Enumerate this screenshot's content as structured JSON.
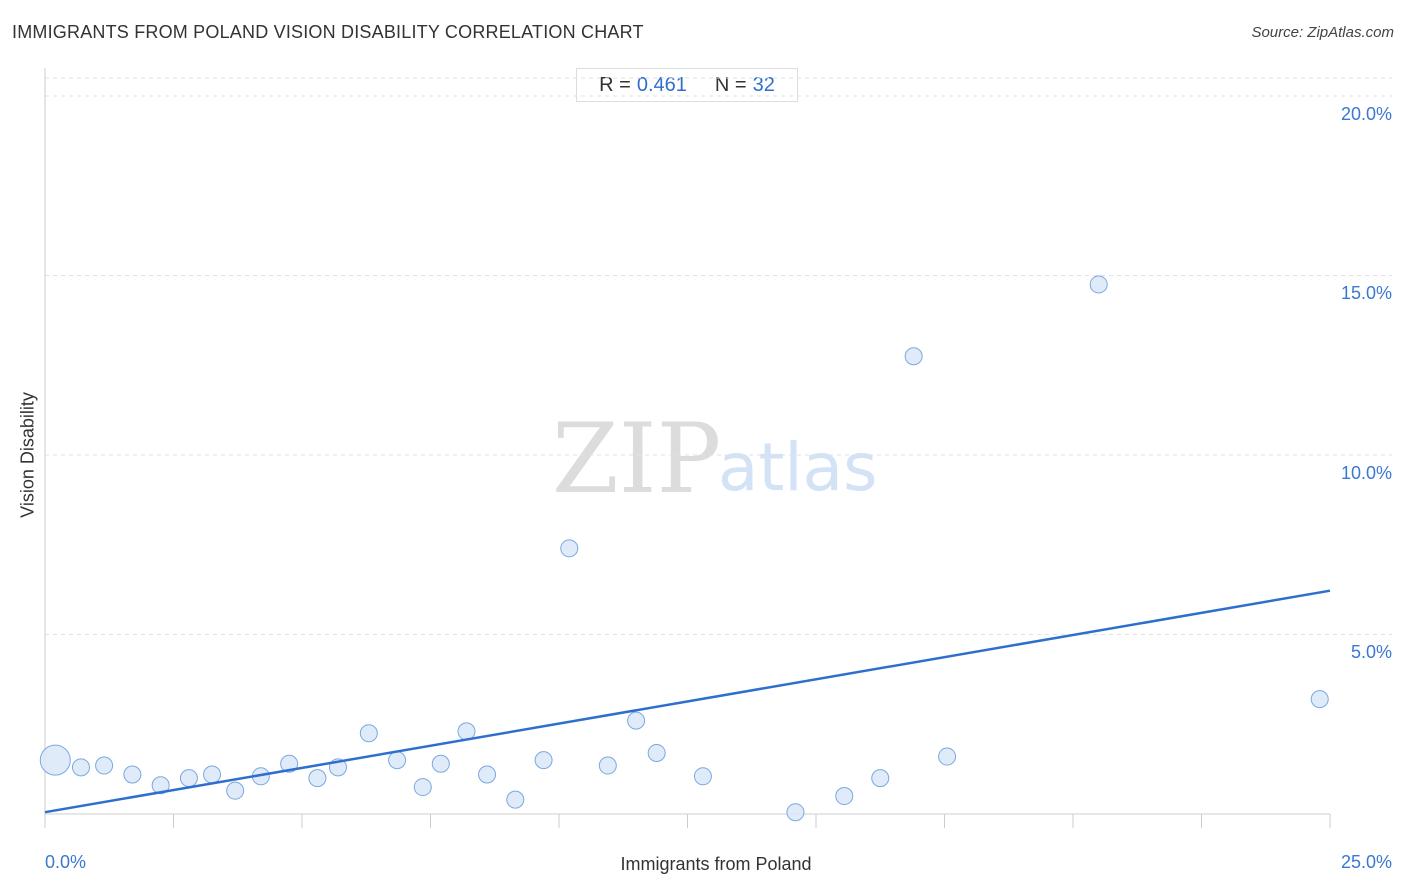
{
  "title": "IMMIGRANTS FROM POLAND VISION DISABILITY CORRELATION CHART",
  "source": "Source: ZipAtlas.com",
  "stats": {
    "r_label": "R =",
    "r_value": "0.461",
    "n_label": "N =",
    "n_value": "32"
  },
  "watermark": {
    "zip": "ZIP",
    "atlas": "atlas"
  },
  "colors": {
    "accent": "#2e6fce",
    "point_fill": "#dbe8f8",
    "point_stroke": "#7aa8e0",
    "grid": "#e2e2e2"
  },
  "chart_data": {
    "type": "scatter",
    "title": "IMMIGRANTS FROM POLAND VISION DISABILITY CORRELATION CHART",
    "xlabel": "Immigrants from Poland",
    "ylabel": "Vision Disability",
    "xlim": [
      0,
      25
    ],
    "ylim": [
      0,
      20.5
    ],
    "x_tick_labels": [
      "0.0%",
      "25.0%"
    ],
    "y_ticks": [
      5,
      10,
      15,
      20
    ],
    "y_tick_labels": [
      "5.0%",
      "10.0%",
      "15.0%",
      "20.0%"
    ],
    "grid": true,
    "points": [
      {
        "x": 0.2,
        "y": 1.5,
        "size": 3
      },
      {
        "x": 0.7,
        "y": 1.3,
        "size": 1
      },
      {
        "x": 1.15,
        "y": 1.35,
        "size": 1
      },
      {
        "x": 1.7,
        "y": 1.1,
        "size": 1
      },
      {
        "x": 2.25,
        "y": 0.8,
        "size": 1
      },
      {
        "x": 2.8,
        "y": 1.0,
        "size": 1
      },
      {
        "x": 3.25,
        "y": 1.1,
        "size": 1
      },
      {
        "x": 3.7,
        "y": 0.65,
        "size": 1
      },
      {
        "x": 4.2,
        "y": 1.05,
        "size": 1
      },
      {
        "x": 4.75,
        "y": 1.4,
        "size": 1
      },
      {
        "x": 5.3,
        "y": 1.0,
        "size": 1
      },
      {
        "x": 5.7,
        "y": 1.3,
        "size": 1
      },
      {
        "x": 6.3,
        "y": 2.25,
        "size": 1
      },
      {
        "x": 6.85,
        "y": 1.5,
        "size": 1
      },
      {
        "x": 7.35,
        "y": 0.75,
        "size": 1
      },
      {
        "x": 7.7,
        "y": 1.4,
        "size": 1
      },
      {
        "x": 8.2,
        "y": 2.3,
        "size": 1
      },
      {
        "x": 8.6,
        "y": 1.1,
        "size": 1
      },
      {
        "x": 9.15,
        "y": 0.4,
        "size": 1
      },
      {
        "x": 9.7,
        "y": 1.5,
        "size": 1
      },
      {
        "x": 10.2,
        "y": 7.4,
        "size": 1
      },
      {
        "x": 10.95,
        "y": 1.35,
        "size": 1
      },
      {
        "x": 11.5,
        "y": 2.6,
        "size": 1
      },
      {
        "x": 11.9,
        "y": 1.7,
        "size": 1
      },
      {
        "x": 12.8,
        "y": 1.05,
        "size": 1
      },
      {
        "x": 14.6,
        "y": 0.05,
        "size": 1
      },
      {
        "x": 15.55,
        "y": 0.5,
        "size": 1
      },
      {
        "x": 16.25,
        "y": 1.0,
        "size": 1
      },
      {
        "x": 16.9,
        "y": 12.75,
        "size": 1
      },
      {
        "x": 17.55,
        "y": 1.6,
        "size": 1
      },
      {
        "x": 20.5,
        "y": 14.75,
        "size": 1
      },
      {
        "x": 24.8,
        "y": 3.2,
        "size": 1
      }
    ],
    "trendline": {
      "x": [
        0,
        25
      ],
      "y": [
        0.05,
        6.22
      ]
    }
  }
}
